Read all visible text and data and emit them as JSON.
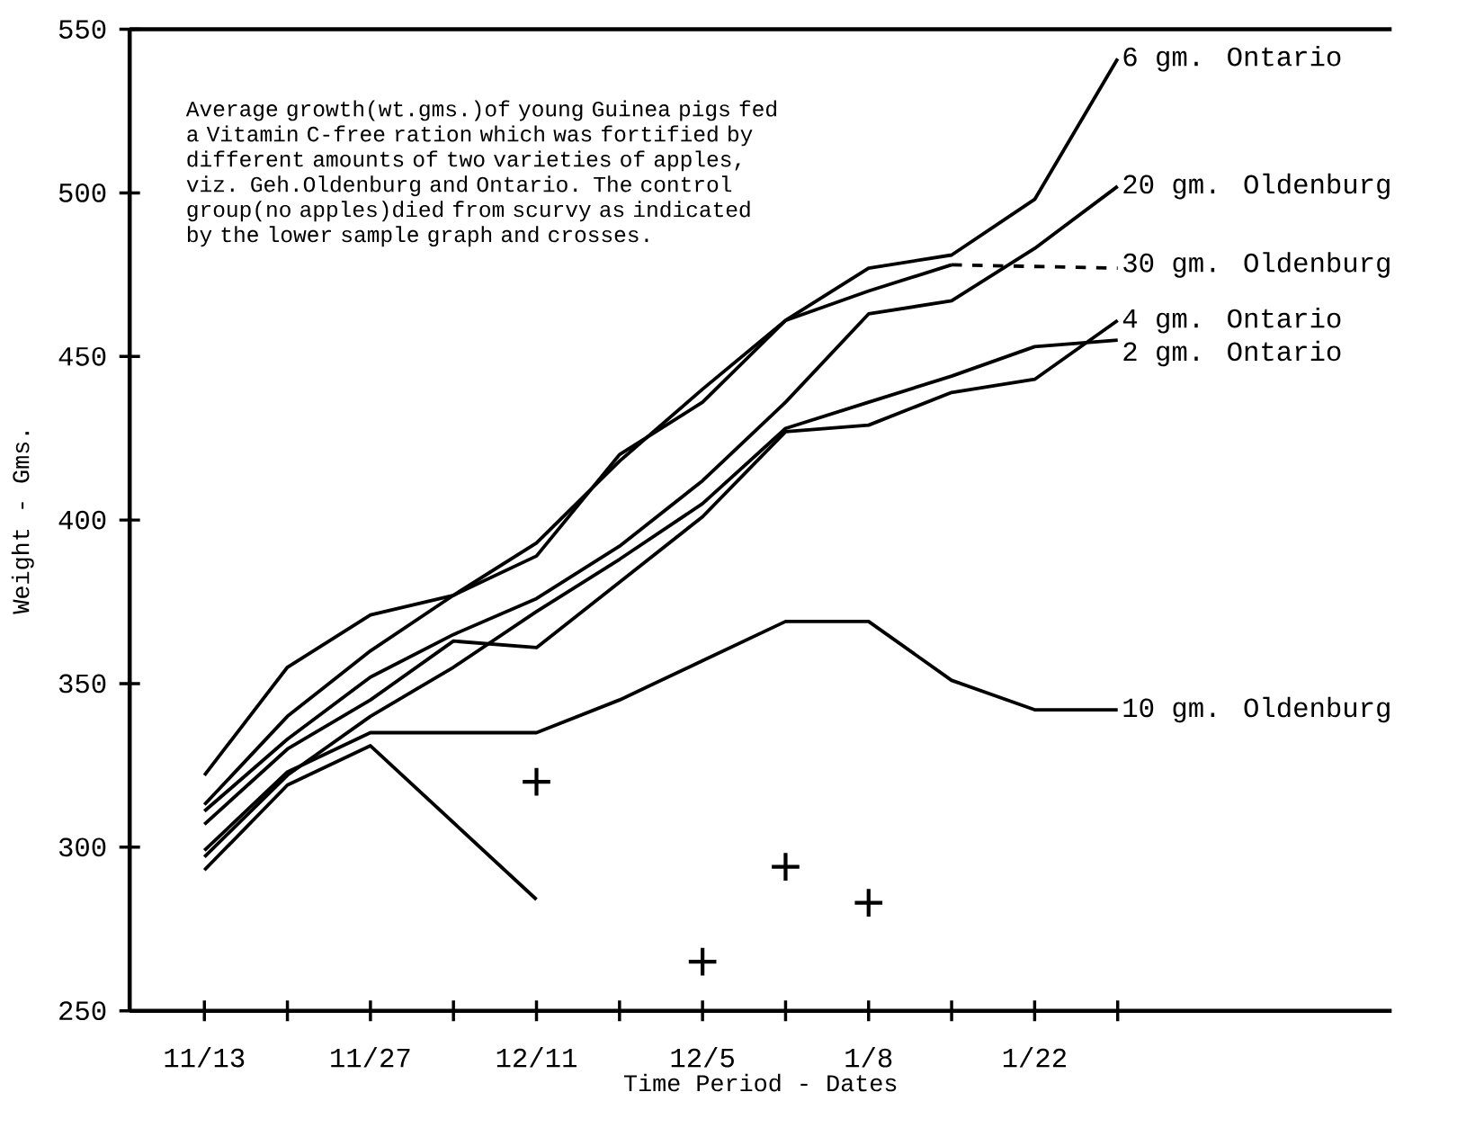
{
  "chart_data": {
    "type": "line",
    "xlabel": "Time Period - Dates",
    "ylabel": "Weight - Gms.",
    "annotations": [
      "Average growth(wt.gms.)of young Guinea pigs fed a Vitamin C-free ration which was fortified by different amounts of two varieties of apples, viz. Geh.Oldenburg and Ontario. The control group(no apples)died from scurvy as indicated by the lower sample graph and crosses."
    ],
    "categories": [
      "11/13",
      null,
      "11/27",
      null,
      "12/11",
      null,
      "12/5",
      null,
      "1/8",
      null,
      "1/22",
      null
    ],
    "ylim": [
      250,
      550
    ],
    "yticks": [
      250,
      300,
      350,
      400,
      450,
      500,
      550
    ],
    "series": [
      {
        "name": "6 gm. Ontario",
        "color": "#000000",
        "values": [
          313,
          340,
          360,
          377,
          389,
          420,
          436,
          461,
          477,
          481,
          498,
          541
        ]
      },
      {
        "name": "20 gm. Oldenburg",
        "color": "#000000",
        "values": [
          311,
          333,
          352,
          365,
          376,
          392,
          412,
          436,
          463,
          467,
          483,
          502
        ]
      },
      {
        "name": "30 gm. Oldenburg",
        "color": "#000000",
        "values": [
          322,
          355,
          371,
          377,
          393,
          418,
          440,
          461,
          470,
          478,
          null,
          null
        ]
      },
      {
        "color": "#000000",
        "line_style": "dashed",
        "values": [
          null,
          null,
          null,
          null,
          null,
          null,
          null,
          null,
          null,
          478,
          null,
          477
        ]
      },
      {
        "name": "4 gm. Ontario",
        "color": "#000000",
        "values": [
          307,
          330,
          345,
          363,
          361,
          381,
          401,
          427,
          429,
          439,
          443,
          461
        ]
      },
      {
        "name": "2 gm. Ontario",
        "color": "#000000",
        "values": [
          297,
          322,
          340,
          355,
          372,
          388,
          405,
          428,
          436,
          444,
          453,
          455
        ]
      },
      {
        "name": "10 gm. Oldenburg",
        "color": "#000000",
        "values": [
          299,
          323,
          335,
          335,
          335,
          345,
          357,
          369,
          369,
          351,
          342,
          342
        ]
      },
      {
        "color": "#000000",
        "values": [
          293,
          319,
          331,
          null,
          284,
          null,
          null,
          null,
          null,
          null,
          null,
          null
        ]
      },
      {
        "type": "scatter",
        "marker": "cross",
        "color": "#000000",
        "values": [
          null,
          null,
          null,
          null,
          320,
          null,
          265,
          294,
          283,
          null,
          null,
          null
        ]
      }
    ]
  }
}
